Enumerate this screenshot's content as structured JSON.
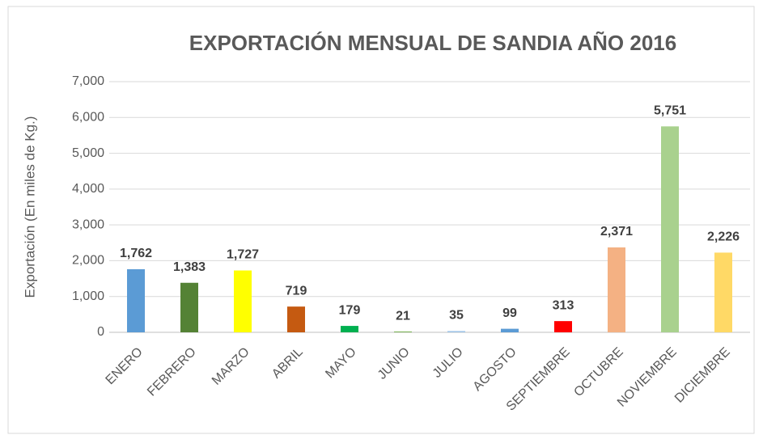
{
  "chart_data": {
    "type": "bar",
    "title": "EXPORTACIÓN MENSUAL DE SANDIA AÑO 2016",
    "y_label": "Exportación (En miles de Kg.)",
    "categories": [
      "ENERO",
      "FEBRERO",
      "MARZO",
      "ABRIL",
      "MAYO",
      "JUNIO",
      "JULIO",
      "AGOSTO",
      "SEPTIEMBRE",
      "OCTUBRE",
      "NOVIEMBRE",
      "DICIEMBRE"
    ],
    "values": [
      1762,
      1383,
      1727,
      719,
      179,
      21,
      35,
      99,
      313,
      2371,
      5751,
      2226
    ],
    "value_labels": [
      "1,762",
      "1,383",
      "1,727",
      "719",
      "179",
      "21",
      "35",
      "99",
      "313",
      "2,371",
      "5,751",
      "2,226"
    ],
    "colors": [
      "#5b9bd5",
      "#548235",
      "#ffff00",
      "#c55a11",
      "#00b050",
      "#70ad47",
      "#9dc3e6",
      "#5b9bd5",
      "#ff0000",
      "#f4b183",
      "#a9d18e",
      "#ffd966"
    ],
    "ylim": [
      0,
      7000
    ],
    "yticks": [
      0,
      {
        "value": 1000,
        "label": "1,000"
      },
      {
        "value": 2000,
        "label": "2,000"
      },
      {
        "value": 3000,
        "label": "3,000"
      },
      {
        "value": 4000,
        "label": "4,000"
      },
      {
        "value": 5000,
        "label": "5,000"
      },
      {
        "value": 6000,
        "label": "6,000"
      },
      {
        "value": 7000,
        "label": "7,000"
      }
    ],
    "grid": true
  }
}
